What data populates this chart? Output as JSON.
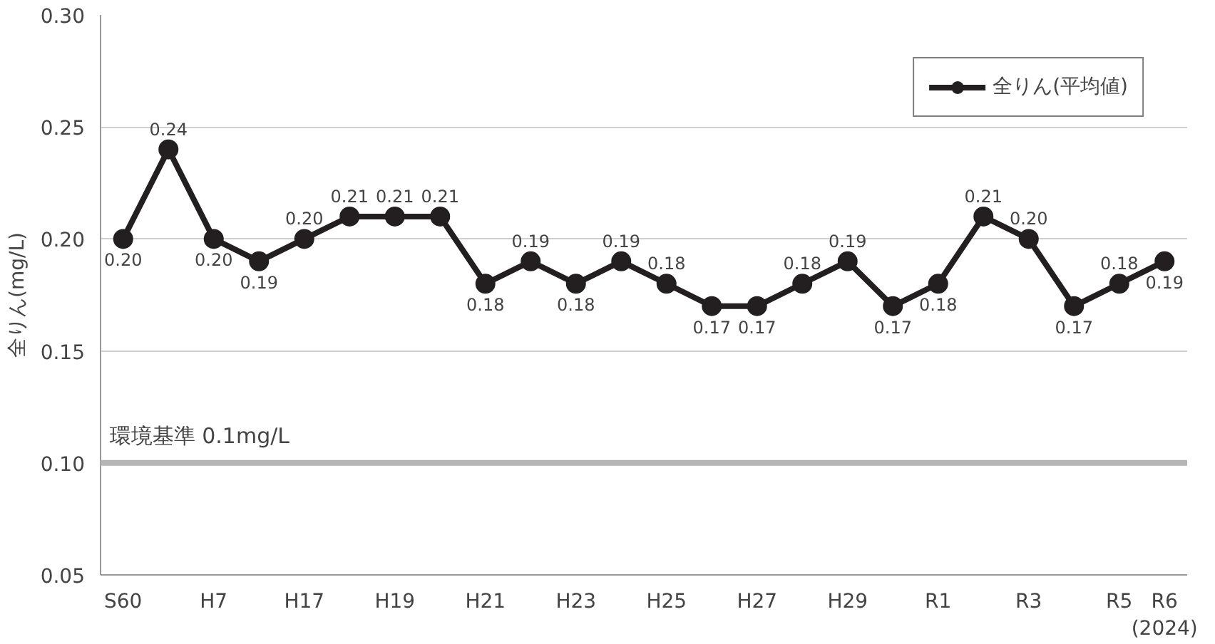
{
  "chart_data": {
    "type": "line",
    "ylabel": "全りん(mg/L)",
    "categories": [
      "S60",
      null,
      "H7",
      null,
      "H17",
      null,
      "H19",
      null,
      "H21",
      null,
      "H23",
      null,
      "H25",
      null,
      "H27",
      null,
      "H29",
      null,
      "R1",
      null,
      "R3",
      null,
      "R5",
      "R6\n(2024)"
    ],
    "series": [
      {
        "name": "全りん(平均値)",
        "color": "#231f20",
        "values": [
          0.2,
          0.24,
          0.2,
          0.19,
          0.2,
          0.21,
          0.21,
          0.21,
          0.18,
          0.19,
          0.18,
          0.19,
          0.18,
          0.17,
          0.17,
          0.18,
          0.19,
          0.17,
          0.18,
          0.21,
          0.2,
          0.17,
          0.18,
          0.19
        ]
      }
    ],
    "ylim": [
      0.05,
      0.3
    ],
    "yticks": [
      {
        "value": 0.05,
        "label": "0.05"
      },
      {
        "value": 0.1,
        "label": "0.10"
      },
      {
        "value": 0.15,
        "label": "0.15"
      },
      {
        "value": 0.2,
        "label": "0.20"
      },
      {
        "value": 0.25,
        "label": "0.25"
      },
      {
        "value": 0.3,
        "label": "0.30"
      }
    ],
    "ref_lines": [
      {
        "axis": "y",
        "value": 0.1,
        "label": "環境基準 0.1mg/L",
        "color": "#b5b5b5"
      }
    ],
    "value_labels": [
      "0.20",
      "0.24",
      "0.20",
      "0.19",
      "0.20",
      "0.21",
      "0.21",
      "0.21",
      "0.18",
      "0.19",
      "0.18",
      "0.19",
      "0.18",
      "0.17",
      "0.17",
      "0.18",
      "0.19",
      "0.17",
      "0.18",
      "0.21",
      "0.20",
      "0.17",
      "0.18",
      "0.19"
    ],
    "grid": "y",
    "legend": "top right",
    "marker": "circle",
    "line_style": "solid"
  }
}
